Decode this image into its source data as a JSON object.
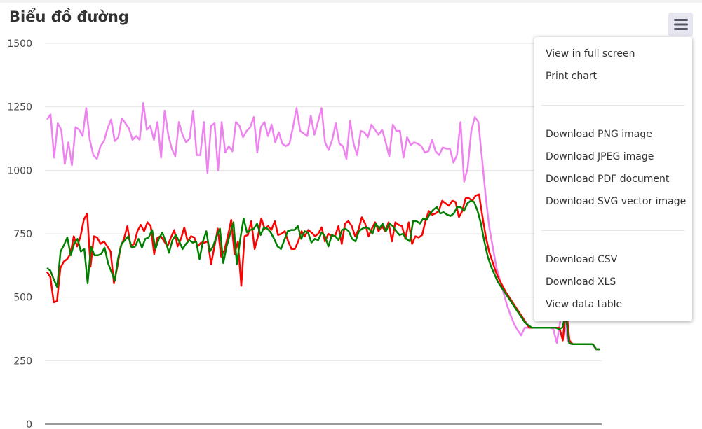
{
  "chart": {
    "title": "Biểu đồ đường"
  },
  "colors": {
    "background": "#ffffff",
    "grid": "#e6e6e6",
    "axis": "#333333",
    "menu_button_bg": "#e6e6f0",
    "menu_icon": "#555566"
  },
  "export_menu": {
    "groups": [
      [
        "View in full screen",
        "Print chart"
      ],
      [
        "Download PNG image",
        "Download JPEG image",
        "Download PDF document",
        "Download SVG vector image"
      ],
      [
        "Download CSV",
        "Download XLS",
        "View data table"
      ]
    ]
  },
  "chart_data": {
    "type": "line",
    "title": "Biểu đồ đường",
    "xlabel": "",
    "ylabel": "",
    "ylim": [
      0,
      1500
    ],
    "yticks": [
      0,
      250,
      500,
      750,
      1000,
      1250,
      1500
    ],
    "grid": true,
    "legend": "none",
    "series": [
      {
        "color": "#ee82ee",
        "values": [
          1200,
          1220,
          1050,
          1185,
          1160,
          1025,
          1110,
          1020,
          1170,
          1160,
          1135,
          1245,
          1120,
          1060,
          1045,
          1095,
          1115,
          1165,
          1200,
          1115,
          1130,
          1205,
          1185,
          1165,
          1120,
          1135,
          1120,
          1265,
          1160,
          1175,
          1120,
          1190,
          1050,
          1235,
          1140,
          1085,
          1055,
          1190,
          1140,
          1110,
          1125,
          1235,
          1060,
          1060,
          1190,
          990,
          1175,
          1185,
          1000,
          1190,
          1070,
          1095,
          1075,
          1190,
          1175,
          1130,
          1155,
          1170,
          1210,
          1070,
          1170,
          1190,
          1135,
          1180,
          1110,
          1150,
          1105,
          1095,
          1105,
          1170,
          1245,
          1155,
          1145,
          1135,
          1215,
          1140,
          1190,
          1245,
          1110,
          1080,
          1120,
          1185,
          1105,
          1095,
          1045,
          1195,
          1105,
          1060,
          1155,
          1150,
          1130,
          1180,
          1160,
          1140,
          1160,
          1110,
          1055,
          1180,
          1155,
          1155,
          1050,
          1130,
          1100,
          1110,
          1105,
          1095,
          1070,
          1075,
          1120,
          1075,
          1060,
          1090,
          1085,
          1085,
          1030,
          1060,
          1190,
          955,
          1010,
          1155,
          1210,
          1190,
          1050,
          905,
          780,
          700,
          620,
          570,
          520,
          470,
          430,
          395,
          370,
          350,
          380,
          380,
          380,
          380,
          380,
          380,
          380,
          380,
          375,
          320,
          410,
          440,
          330,
          315,
          315,
          315,
          315,
          315,
          315,
          315,
          295,
          295
        ]
      },
      {
        "color": "#ff0000",
        "values": [
          600,
          580,
          480,
          485,
          615,
          640,
          650,
          670,
          740,
          700,
          740,
          805,
          830,
          620,
          740,
          735,
          710,
          720,
          700,
          680,
          555,
          620,
          700,
          730,
          780,
          700,
          710,
          760,
          785,
          760,
          795,
          780,
          670,
          735,
          740,
          720,
          700,
          735,
          765,
          700,
          730,
          775,
          720,
          740,
          735,
          700,
          715,
          715,
          720,
          630,
          700,
          770,
          660,
          685,
          740,
          805,
          670,
          720,
          545,
          740,
          745,
          800,
          690,
          740,
          810,
          770,
          780,
          765,
          800,
          745,
          750,
          760,
          720,
          690,
          690,
          720,
          760,
          740,
          765,
          755,
          740,
          750,
          775,
          720,
          750,
          740,
          740,
          780,
          710,
          790,
          800,
          780,
          740,
          765,
          815,
          790,
          740,
          770,
          795,
          760,
          780,
          760,
          795,
          720,
          795,
          785,
          780,
          730,
          795,
          710,
          740,
          735,
          745,
          800,
          840,
          825,
          830,
          840,
          880,
          870,
          860,
          880,
          875,
          815,
          840,
          890,
          890,
          880,
          900,
          905,
          820,
          740,
          680,
          640,
          600,
          570,
          545,
          520,
          500,
          480,
          460,
          440,
          420,
          400,
          380,
          380,
          380,
          380,
          380,
          380,
          380,
          380,
          380,
          380,
          330,
          460,
          330,
          315,
          315,
          315,
          315,
          315,
          315,
          315,
          295,
          295
        ]
      },
      {
        "color": "#008000",
        "values": [
          615,
          605,
          570,
          540,
          680,
          705,
          735,
          665,
          710,
          730,
          680,
          690,
          555,
          700,
          665,
          665,
          670,
          695,
          635,
          600,
          565,
          655,
          710,
          725,
          740,
          695,
          700,
          730,
          695,
          730,
          735,
          765,
          690,
          730,
          755,
          720,
          675,
          725,
          745,
          720,
          690,
          710,
          725,
          715,
          720,
          650,
          720,
          760,
          680,
          700,
          740,
          770,
          635,
          700,
          750,
          795,
          630,
          730,
          810,
          755,
          765,
          770,
          790,
          745,
          775,
          770,
          755,
          730,
          700,
          690,
          725,
          760,
          765,
          765,
          780,
          730,
          760,
          755,
          715,
          730,
          725,
          755,
          740,
          700,
          745,
          740,
          725,
          765,
          770,
          760,
          730,
          720,
          760,
          770,
          775,
          770,
          750,
          790,
          770,
          790,
          760,
          790,
          780,
          760,
          745,
          750,
          730,
          720,
          800,
          800,
          790,
          810,
          805,
          830,
          845,
          855,
          830,
          835,
          825,
          820,
          830,
          855,
          855,
          840,
          870,
          880,
          875,
          840,
          790,
          720,
          660,
          620,
          590,
          560,
          540,
          520,
          500,
          480,
          460,
          440,
          420,
          400,
          390,
          380,
          380,
          380,
          380,
          380,
          380,
          380,
          380,
          375,
          380,
          430,
          320,
          315,
          315,
          315,
          315,
          315,
          315,
          315,
          295,
          295
        ]
      }
    ]
  }
}
